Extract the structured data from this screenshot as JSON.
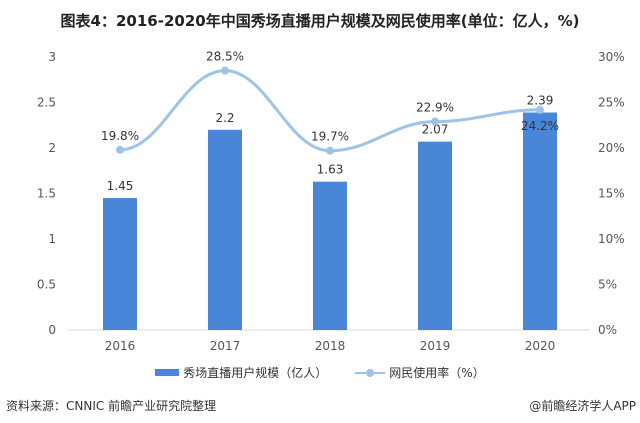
{
  "title": "图表4：2016-2020年中国秀场直播用户规模及网民使用率(单位：亿人，%)",
  "source": "资料来源：CNNIC 前瞻产业研究院整理",
  "credit": "@前瞻经济学人APP",
  "colors": {
    "bar": "#4a86d8",
    "line": "#9dc3e6"
  },
  "chart_data": {
    "type": "bar+line",
    "categories": [
      "2016",
      "2017",
      "2018",
      "2019",
      "2020"
    ],
    "series": [
      {
        "name": "秀场直播用户规模（亿人）",
        "type": "bar",
        "axis": "left",
        "values": [
          1.45,
          2.2,
          1.63,
          2.07,
          2.39
        ],
        "labels": [
          "1.45",
          "2.2",
          "1.63",
          "2.07",
          "2.39"
        ]
      },
      {
        "name": "网民使用率（%）",
        "type": "line",
        "axis": "right",
        "values": [
          19.8,
          28.5,
          19.7,
          22.9,
          24.2
        ],
        "labels": [
          "19.8%",
          "28.5%",
          "19.7%",
          "22.9%",
          "24.2%"
        ]
      }
    ],
    "left_axis": {
      "range": [
        0,
        3
      ],
      "ticks": [
        "0",
        "0.5",
        "1",
        "1.5",
        "2",
        "2.5",
        "3"
      ]
    },
    "right_axis": {
      "range": [
        0,
        30
      ],
      "ticks": [
        "0%",
        "5%",
        "10%",
        "15%",
        "20%",
        "25%",
        "30%"
      ]
    },
    "legend_placement": "bottom",
    "grid": false
  }
}
